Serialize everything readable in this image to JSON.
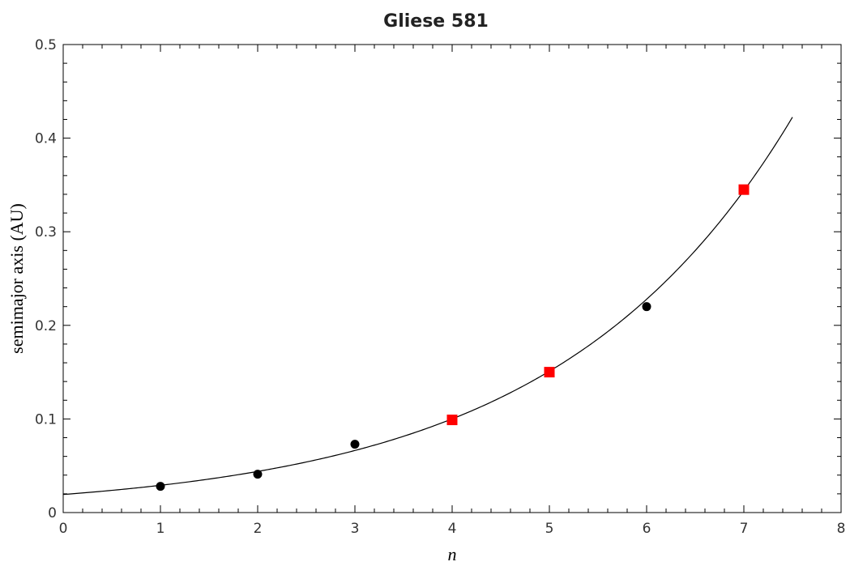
{
  "chart_data": {
    "type": "scatter",
    "title": "Gliese 581",
    "xlabel": "n",
    "ylabel": "semimajor axis (AU)",
    "xlim": [
      0,
      8
    ],
    "ylim": [
      0,
      0.5
    ],
    "xticks": [
      0,
      1,
      2,
      3,
      4,
      5,
      6,
      7,
      8
    ],
    "yticks": [
      0,
      0.1,
      0.2,
      0.3,
      0.4,
      0.5
    ],
    "xtick_labels": [
      "0",
      "1",
      "2",
      "3",
      "4",
      "5",
      "6",
      "7",
      "8"
    ],
    "ytick_labels": [
      "0",
      "0.1",
      "0.2",
      "0.3",
      "0.4",
      "0.5"
    ],
    "grid": false,
    "series": [
      {
        "marker": "circle",
        "color": "#000000",
        "points": [
          {
            "x": 1,
            "y": 0.028
          },
          {
            "x": 2,
            "y": 0.041
          },
          {
            "x": 3,
            "y": 0.073
          },
          {
            "x": 6,
            "y": 0.22
          }
        ]
      },
      {
        "marker": "square",
        "color": "#ff0000",
        "points": [
          {
            "x": 4,
            "y": 0.099
          },
          {
            "x": 5,
            "y": 0.15
          },
          {
            "x": 7,
            "y": 0.345
          }
        ]
      },
      {
        "type": "line",
        "color": "#000000",
        "x_range": [
          0,
          7.5
        ],
        "fit": {
          "a": 0.0193,
          "b": 1.509
        }
      }
    ]
  }
}
